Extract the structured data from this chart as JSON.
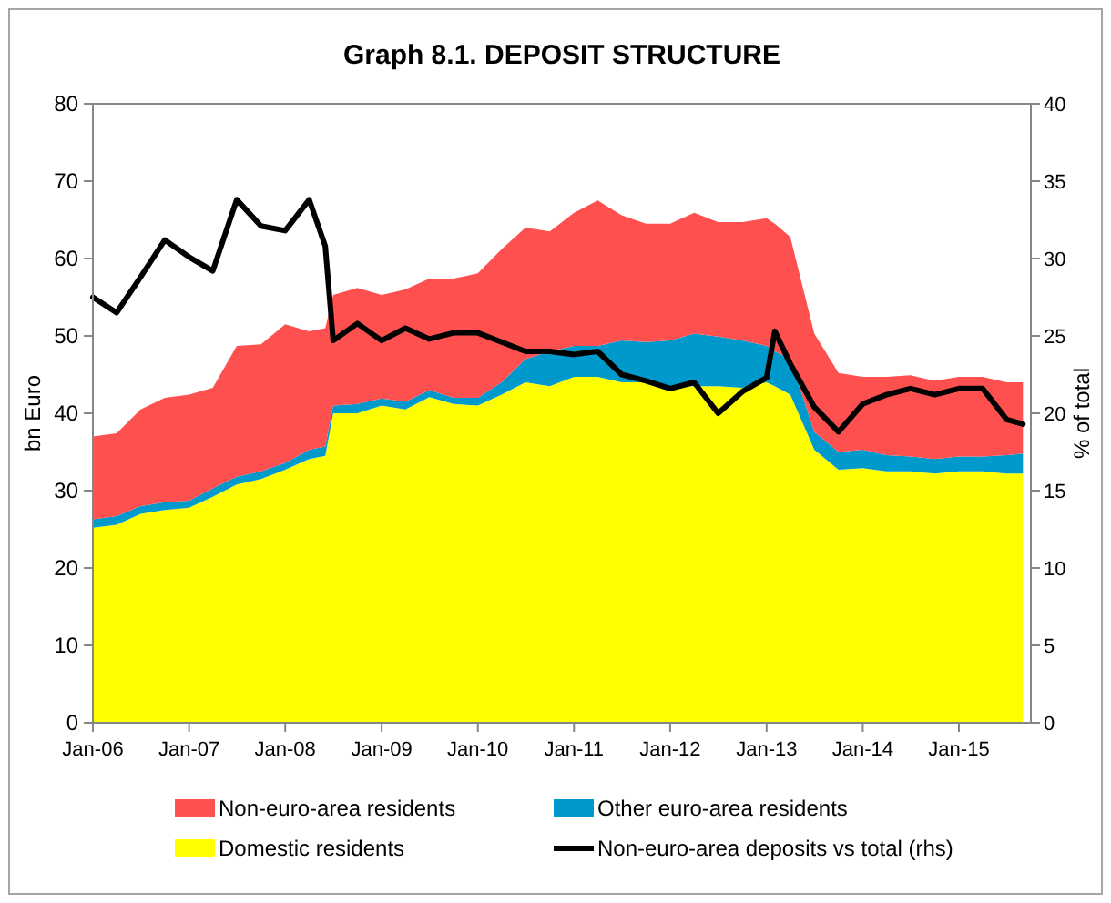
{
  "chart_data": {
    "type": "area",
    "title": "Graph 8.1. DEPOSIT STRUCTURE",
    "ylabel": "bn Euro",
    "y2label": "% of total",
    "stacked": true,
    "legend": "bottom",
    "grid": false,
    "x": [
      "2006-01",
      "2006-04",
      "2006-07",
      "2006-10",
      "2007-01",
      "2007-04",
      "2007-07",
      "2007-10",
      "2008-01",
      "2008-04",
      "2008-06",
      "2008-07",
      "2008-10",
      "2009-01",
      "2009-04",
      "2009-07",
      "2009-10",
      "2010-01",
      "2010-04",
      "2010-07",
      "2010-10",
      "2011-01",
      "2011-04",
      "2011-07",
      "2011-10",
      "2012-01",
      "2012-04",
      "2012-07",
      "2012-10",
      "2013-01",
      "2013-02",
      "2013-04",
      "2013-07",
      "2013-10",
      "2014-01",
      "2014-04",
      "2014-07",
      "2014-10",
      "2015-01",
      "2015-04",
      "2015-07",
      "2015-09"
    ],
    "xlim": [
      "2006-01",
      "2015-10"
    ],
    "xticks": [
      {
        "value": "2006-01",
        "label": "Jan-06"
      },
      {
        "value": "2007-01",
        "label": "Jan-07"
      },
      {
        "value": "2008-01",
        "label": "Jan-08"
      },
      {
        "value": "2009-01",
        "label": "Jan-09"
      },
      {
        "value": "2010-01",
        "label": "Jan-10"
      },
      {
        "value": "2011-01",
        "label": "Jan-11"
      },
      {
        "value": "2012-01",
        "label": "Jan-12"
      },
      {
        "value": "2013-01",
        "label": "Jan-13"
      },
      {
        "value": "2014-01",
        "label": "Jan-14"
      },
      {
        "value": "2015-01",
        "label": "Jan-15"
      }
    ],
    "ylim": [
      0,
      80
    ],
    "yticks": [
      0,
      10,
      20,
      30,
      40,
      50,
      60,
      70,
      80
    ],
    "y2lim": [
      0,
      40
    ],
    "y2ticks": [
      0,
      5,
      10,
      15,
      20,
      25,
      30,
      35,
      40
    ],
    "series": [
      {
        "name": "Domestic residents",
        "color": "#ffff00",
        "values": [
          25.2,
          25.6,
          27,
          27.5,
          27.8,
          29.2,
          30.8,
          31.5,
          32.7,
          34.1,
          34.5,
          40,
          40,
          41,
          40.5,
          42.1,
          41.2,
          41,
          42.4,
          44,
          43.5,
          44.7,
          44.7,
          44,
          44,
          43.5,
          43.5,
          43.5,
          43.3,
          44,
          43.5,
          42.4,
          35.3,
          32.7,
          32.9,
          32.5,
          32.5,
          32.2,
          32.5,
          32.5,
          32.2,
          32.2
        ]
      },
      {
        "name": "Other euro-area residents",
        "color": "#0099cc",
        "values": [
          1.1,
          1.1,
          1,
          1,
          0.9,
          1.1,
          1,
          1,
          0.9,
          1.2,
          1.2,
          1,
          1.2,
          0.9,
          1,
          0.9,
          0.8,
          1,
          1.6,
          3,
          4.5,
          4,
          4,
          5.4,
          5.2,
          5.9,
          6.8,
          6.4,
          6.1,
          4.7,
          4.5,
          4.6,
          2.3,
          2.3,
          2.4,
          2.1,
          1.9,
          1.9,
          1.9,
          1.9,
          2.4,
          2.6
        ]
      },
      {
        "name": "Non-euro-area residents",
        "color": "#ff5050",
        "values": [
          10.7,
          10.7,
          12.5,
          13.5,
          13.7,
          13,
          16.9,
          16.4,
          17.9,
          15.3,
          15.3,
          14.3,
          15,
          13.4,
          14.5,
          14.4,
          15.4,
          16.1,
          17.2,
          17,
          15.5,
          17.2,
          18.8,
          16.2,
          15.3,
          15.1,
          15.6,
          14.8,
          15.3,
          16.5,
          16.5,
          15.8,
          12.7,
          10.2,
          9.4,
          10.1,
          10.5,
          10.1,
          10.3,
          10.3,
          9.4,
          9.2
        ]
      },
      {
        "name": "Non-euro-area deposits vs total (rhs)",
        "type": "line",
        "axis": "y2",
        "color": "#000000",
        "values": [
          27.5,
          26.5,
          28.8,
          31.2,
          30.1,
          29.2,
          33.8,
          32.1,
          31.8,
          33.8,
          30.8,
          24.7,
          25.8,
          24.7,
          25.5,
          24.8,
          25.2,
          25.2,
          24.6,
          24,
          24,
          23.8,
          24,
          22.5,
          22.1,
          21.6,
          22,
          20,
          21.4,
          22.3,
          25.3,
          23.2,
          20.4,
          18.8,
          20.6,
          21.2,
          21.6,
          21.2,
          21.6,
          21.6,
          19.6,
          19.3
        ]
      }
    ]
  }
}
